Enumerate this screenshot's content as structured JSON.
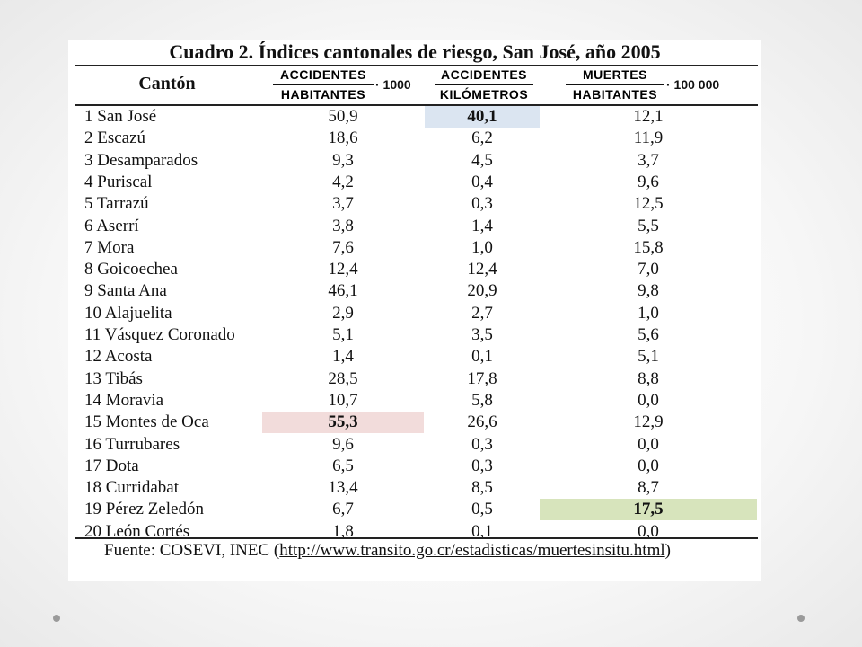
{
  "table": {
    "title": "Cuadro 2. Índices cantonales de riesgo, San José, año 2005",
    "headers": {
      "canton": "Cantón",
      "col_a": {
        "numerator": "ACCIDENTES",
        "denominator": "HABITANTES",
        "multiplier": "· 1000"
      },
      "col_b": {
        "numerator": "ACCIDENTES",
        "denominator": "KILÓMETROS"
      },
      "col_c": {
        "numerator": "MUERTES",
        "denominator": "HABITANTES",
        "multiplier": "· 100 000"
      }
    },
    "rows": [
      {
        "canton": "1 San José",
        "a": "50,9",
        "b": "40,1",
        "c": "12,1"
      },
      {
        "canton": "2 Escazú",
        "a": "18,6",
        "b": "6,2",
        "c": "11,9"
      },
      {
        "canton": "3 Desamparados",
        "a": "9,3",
        "b": "4,5",
        "c": "3,7"
      },
      {
        "canton": "4 Puriscal",
        "a": "4,2",
        "b": "0,4",
        "c": "9,6"
      },
      {
        "canton": "5 Tarrazú",
        "a": "3,7",
        "b": "0,3",
        "c": "12,5"
      },
      {
        "canton": "6 Aserrí",
        "a": "3,8",
        "b": "1,4",
        "c": "5,5"
      },
      {
        "canton": "7 Mora",
        "a": "7,6",
        "b": "1,0",
        "c": "15,8"
      },
      {
        "canton": "8 Goicoechea",
        "a": "12,4",
        "b": "12,4",
        "c": "7,0"
      },
      {
        "canton": "9 Santa Ana",
        "a": "46,1",
        "b": "20,9",
        "c": "9,8"
      },
      {
        "canton": "10 Alajuelita",
        "a": "2,9",
        "b": "2,7",
        "c": "1,0"
      },
      {
        "canton": "11 Vásquez Coronado",
        "a": "5,1",
        "b": "3,5",
        "c": "5,6"
      },
      {
        "canton": "12 Acosta",
        "a": "1,4",
        "b": "0,1",
        "c": "5,1"
      },
      {
        "canton": "13 Tibás",
        "a": "28,5",
        "b": "17,8",
        "c": "8,8"
      },
      {
        "canton": "14 Moravia",
        "a": "10,7",
        "b": "5,8",
        "c": "0,0"
      },
      {
        "canton": "15 Montes de Oca",
        "a": "55,3",
        "b": "26,6",
        "c": "12,9"
      },
      {
        "canton": "16 Turrubares",
        "a": "9,6",
        "b": "0,3",
        "c": "0,0"
      },
      {
        "canton": "17 Dota",
        "a": "6,5",
        "b": "0,3",
        "c": "0,0"
      },
      {
        "canton": "18 Curridabat",
        "a": "13,4",
        "b": "8,5",
        "c": "8,7"
      },
      {
        "canton": "19 Pérez Zeledón",
        "a": "6,7",
        "b": "0,5",
        "c": "17,5"
      },
      {
        "canton": "20 León Cortés",
        "a": "1,8",
        "b": "0,1",
        "c": "0,0"
      }
    ],
    "highlights": {
      "blue": "#dbe5f1",
      "pink": "#f2dcdb",
      "green": "#d7e4bc"
    },
    "source": {
      "prefix": "Fuente: COSEVI, INEC (",
      "link": "http://www.transito.go.cr/estadisticas/muertesinsitu.html",
      "suffix": ")"
    }
  }
}
